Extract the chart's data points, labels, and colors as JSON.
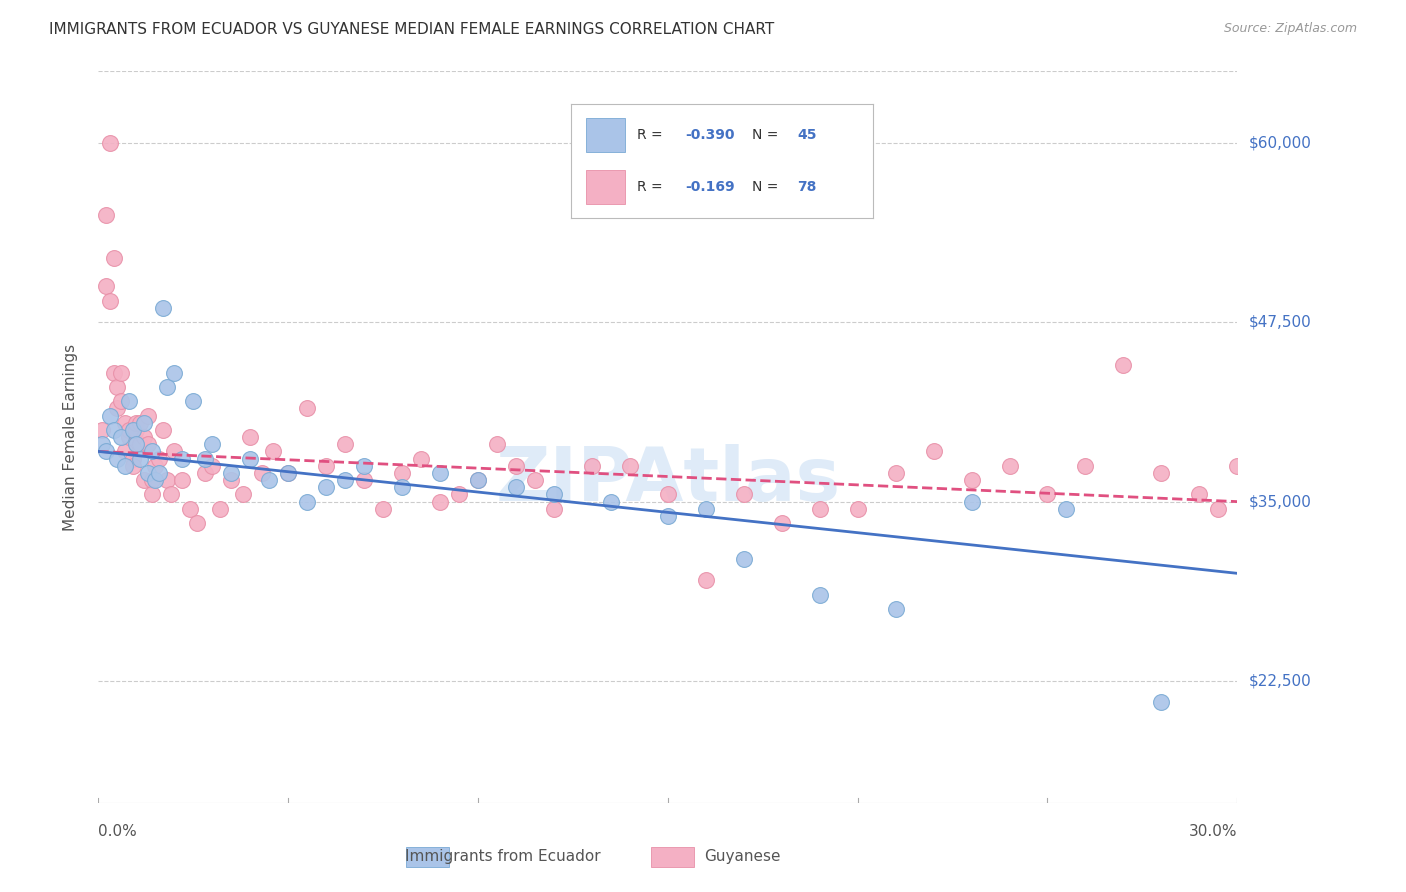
{
  "title": "IMMIGRANTS FROM ECUADOR VS GUYANESE MEDIAN FEMALE EARNINGS CORRELATION CHART",
  "source": "Source: ZipAtlas.com",
  "ylabel": "Median Female Earnings",
  "y_ticks": [
    22500,
    35000,
    47500,
    60000
  ],
  "y_tick_labels": [
    "$22,500",
    "$35,000",
    "$47,500",
    "$60,000"
  ],
  "x_min": 0.0,
  "x_max": 0.3,
  "y_min": 14000,
  "y_max": 65000,
  "watermark": "ZIPAtlas",
  "series": [
    {
      "name": "Immigrants from Ecuador",
      "R": -0.39,
      "N": 45,
      "color": "#aac4e8",
      "edge_color": "#7aaad4",
      "trend_color": "#4472c4",
      "trend_style": "solid",
      "trend_x0": 0.0,
      "trend_y0": 38500,
      "trend_x1": 0.3,
      "trend_y1": 30000,
      "x": [
        0.001,
        0.002,
        0.003,
        0.004,
        0.005,
        0.006,
        0.007,
        0.008,
        0.009,
        0.01,
        0.011,
        0.012,
        0.013,
        0.014,
        0.015,
        0.016,
        0.017,
        0.018,
        0.02,
        0.022,
        0.025,
        0.028,
        0.03,
        0.035,
        0.04,
        0.045,
        0.05,
        0.055,
        0.06,
        0.065,
        0.07,
        0.08,
        0.09,
        0.1,
        0.11,
        0.12,
        0.135,
        0.15,
        0.16,
        0.17,
        0.19,
        0.21,
        0.23,
        0.255,
        0.28
      ],
      "y": [
        39000,
        38500,
        41000,
        40000,
        38000,
        39500,
        37500,
        42000,
        40000,
        39000,
        38000,
        40500,
        37000,
        38500,
        36500,
        37000,
        48500,
        43000,
        44000,
        38000,
        42000,
        38000,
        39000,
        37000,
        38000,
        36500,
        37000,
        35000,
        36000,
        36500,
        37500,
        36000,
        37000,
        36500,
        36000,
        35500,
        35000,
        34000,
        34500,
        31000,
        28500,
        27500,
        35000,
        34500,
        21000
      ]
    },
    {
      "name": "Guyanese",
      "R": -0.169,
      "N": 78,
      "color": "#f4b0c4",
      "edge_color": "#e890a8",
      "trend_color": "#e05080",
      "trend_style": "dashed",
      "trend_x0": 0.0,
      "trend_y0": 38500,
      "trend_x1": 0.3,
      "trend_y1": 35000,
      "x": [
        0.001,
        0.002,
        0.002,
        0.003,
        0.003,
        0.004,
        0.004,
        0.005,
        0.005,
        0.006,
        0.006,
        0.007,
        0.007,
        0.008,
        0.008,
        0.009,
        0.009,
        0.01,
        0.01,
        0.011,
        0.011,
        0.012,
        0.012,
        0.013,
        0.013,
        0.014,
        0.014,
        0.015,
        0.016,
        0.017,
        0.018,
        0.019,
        0.02,
        0.022,
        0.024,
        0.026,
        0.028,
        0.03,
        0.032,
        0.035,
        0.038,
        0.04,
        0.043,
        0.046,
        0.05,
        0.055,
        0.06,
        0.065,
        0.07,
        0.075,
        0.08,
        0.085,
        0.09,
        0.095,
        0.1,
        0.105,
        0.11,
        0.115,
        0.12,
        0.13,
        0.14,
        0.15,
        0.16,
        0.17,
        0.18,
        0.19,
        0.2,
        0.21,
        0.22,
        0.23,
        0.24,
        0.25,
        0.26,
        0.27,
        0.28,
        0.29,
        0.295,
        0.3
      ],
      "y": [
        40000,
        55000,
        50000,
        49000,
        60000,
        44000,
        52000,
        43000,
        41500,
        42000,
        44000,
        40500,
        38500,
        39500,
        40000,
        38000,
        37500,
        40000,
        40500,
        39000,
        40500,
        39500,
        36500,
        41000,
        39000,
        36500,
        35500,
        37500,
        38000,
        40000,
        36500,
        35500,
        38500,
        36500,
        34500,
        33500,
        37000,
        37500,
        34500,
        36500,
        35500,
        39500,
        37000,
        38500,
        37000,
        41500,
        37500,
        39000,
        36500,
        34500,
        37000,
        38000,
        35000,
        35500,
        36500,
        39000,
        37500,
        36500,
        34500,
        37500,
        37500,
        35500,
        29500,
        35500,
        33500,
        34500,
        34500,
        37000,
        38500,
        36500,
        37500,
        35500,
        37500,
        44500,
        37000,
        35500,
        34500,
        37500
      ]
    }
  ],
  "title_color": "#333333",
  "axis_color": "#4472c4",
  "grid_color": "#cccccc",
  "background_color": "#ffffff"
}
